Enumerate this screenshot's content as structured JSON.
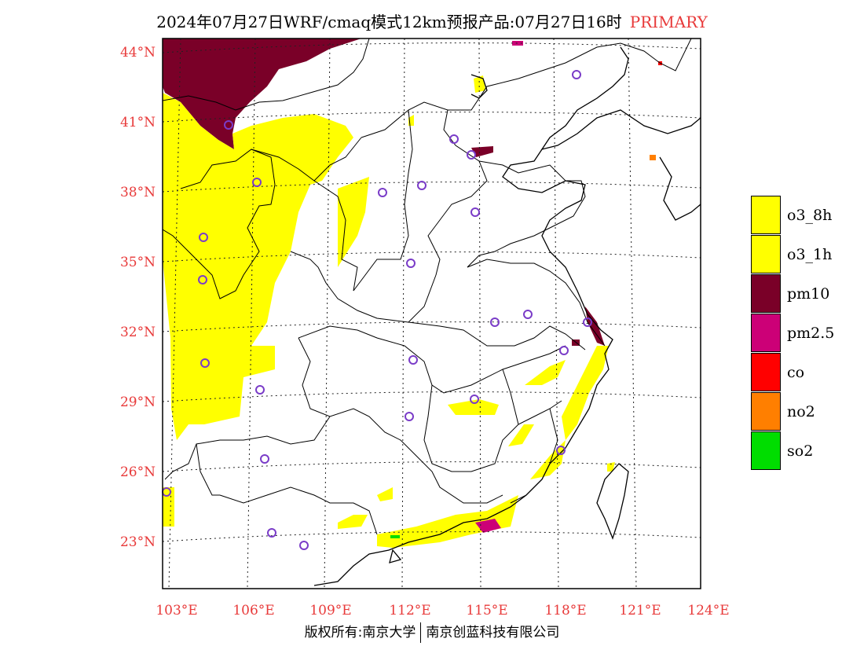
{
  "title": {
    "main": "2024年07月27日WRF/cmaq模式12km预报产品:07月27日16时",
    "tag": "PRIMARY"
  },
  "axes": {
    "lat_labels": [
      "44°N",
      "41°N",
      "38°N",
      "35°N",
      "32°N",
      "29°N",
      "26°N",
      "23°N"
    ],
    "lon_labels": [
      "103°E",
      "106°E",
      "109°E",
      "112°E",
      "115°E",
      "118°E",
      "121°E",
      "124°E"
    ]
  },
  "legend": [
    {
      "label": "o3_8h",
      "color": "#ffff00"
    },
    {
      "label": "o3_1h",
      "color": "#ffff00"
    },
    {
      "label": "pm10",
      "color": "#7a0028"
    },
    {
      "label": "pm2.5",
      "color": "#cc0077"
    },
    {
      "label": "co",
      "color": "#ff0000"
    },
    {
      "label": "no2",
      "color": "#ff7f00"
    },
    {
      "label": "so2",
      "color": "#00dd00"
    }
  ],
  "footer": {
    "left": "版权所有:南京大学",
    "right": "南京创蓝科技有限公司"
  }
}
